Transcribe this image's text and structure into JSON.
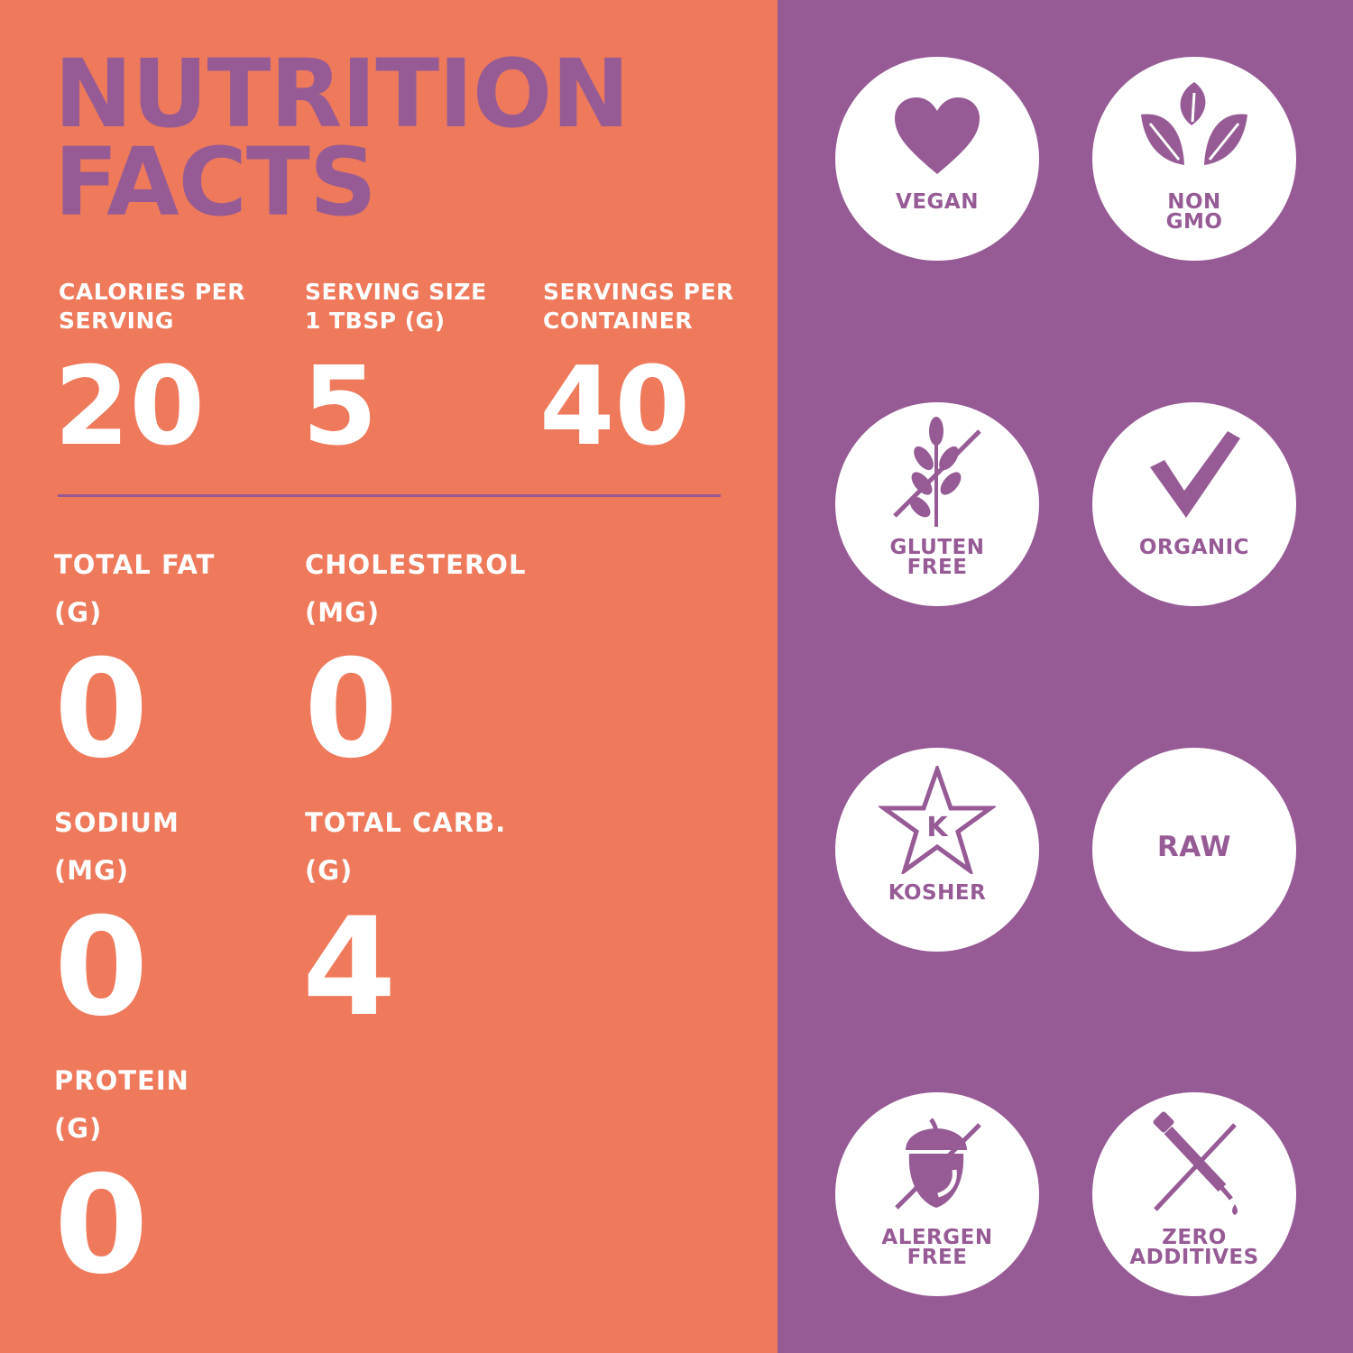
{
  "title": {
    "line1": "NUTRITION",
    "line2": "FACTS"
  },
  "top_stats": [
    {
      "label_line1": "CALORIES PER",
      "label_line2": "SERVING",
      "value": "20"
    },
    {
      "label_line1": "SERVING SIZE",
      "label_line2": "1 TBSP (G)",
      "value": "5"
    },
    {
      "label_line1": "SERVINGS PER",
      "label_line2": "CONTAINER",
      "value": "40"
    }
  ],
  "nutrients": [
    {
      "label_line1": "TOTAL FAT",
      "label_line2": "(G)",
      "value": "0"
    },
    {
      "label_line1": "CHOLESTEROL",
      "label_line2": "(MG)",
      "value": "0"
    },
    {
      "label_line1": "SODIUM",
      "label_line2": "(MG)",
      "value": "0"
    },
    {
      "label_line1": "TOTAL CARB.",
      "label_line2": "(G)",
      "value": "4"
    },
    {
      "label_line1": "PROTEIN",
      "label_line2": "(G)",
      "value": "0"
    }
  ],
  "badges": [
    {
      "icon": "heart-icon",
      "line1": "VEGAN",
      "line2": ""
    },
    {
      "icon": "leaves-icon",
      "line1": "NON",
      "line2": "GMO"
    },
    {
      "icon": "wheat-crossed-icon",
      "line1": "GLUTEN",
      "line2": "FREE"
    },
    {
      "icon": "checkmark-icon",
      "line1": "ORGANIC",
      "line2": ""
    },
    {
      "icon": "star-k-icon",
      "line1": "KOSHER",
      "line2": "",
      "icon_letter": "K"
    },
    {
      "icon": "",
      "line1": "RAW",
      "line2": ""
    },
    {
      "icon": "acorn-crossed-icon",
      "line1": "ALERGEN",
      "line2": "FREE"
    },
    {
      "icon": "dropper-crossed-icon",
      "line1": "ZERO",
      "line2": "ADDITIVES"
    }
  ],
  "colors": {
    "orange": "#ee795b",
    "purple": "#965b95",
    "white": "#ffffff"
  }
}
